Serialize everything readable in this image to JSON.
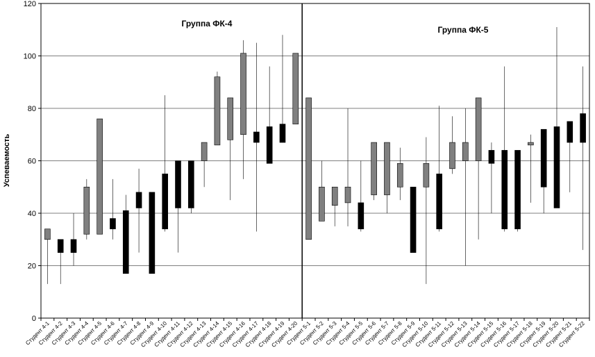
{
  "chart_data": {
    "type": "candlestick",
    "ylabel": "Успеваемость",
    "ylim": [
      0,
      120
    ],
    "yticks": [
      0,
      20,
      40,
      60,
      80,
      100,
      120
    ],
    "grid": true,
    "group_labels": [
      "Группа ФК-4",
      "Группа  ФК-5"
    ],
    "colors": {
      "up": "#808080",
      "down": "#000000",
      "grid": "#000000"
    },
    "categories": [
      "Студент 4-1",
      "Студент 4-2",
      "Студент 4-3",
      "Студент 4-4",
      "Студент 4-5",
      "Студент 4-6",
      "Студент 4-7",
      "Студент 4-8",
      "Студент 4-9",
      "Студент 4-10",
      "Студент 4-11",
      "Студент 4-12",
      "Студент 4-13",
      "Студент 4-14",
      "Студент 4-15",
      "Студент 4-16",
      "Студент 4-17",
      "Студент 4-18",
      "Студент 4-19",
      "Студент 4-20",
      "Студент 5-1",
      "Студент 5-2",
      "Студент 5-3",
      "Студент 5-4",
      "Студент 5-5",
      "Студент 5-6",
      "Студент 5-7",
      "Студент 5-8",
      "Студент 5-9",
      "Студент 5-10",
      "Студент 5-11",
      "Студент 5-12",
      "Студент 5-13",
      "Студент 5-14",
      "Студент 5-15",
      "Студент 5-16",
      "Студент 5-17",
      "Студент 5-18",
      "Студент 5-19",
      "Студент 5-20",
      "Студент 5-21",
      "Студент 5-22"
    ],
    "low": [
      13,
      13,
      20,
      30,
      32,
      30,
      17,
      25,
      17,
      33,
      25,
      40,
      50,
      66,
      45,
      53,
      33,
      59,
      67,
      74,
      30,
      37,
      35,
      35,
      33,
      45,
      40,
      45,
      25,
      13,
      33,
      55,
      20,
      30,
      40,
      33,
      33,
      44,
      40,
      42,
      48,
      26
    ],
    "high": [
      34,
      30,
      40,
      53,
      76,
      53,
      47,
      57,
      48,
      85,
      60,
      60,
      67,
      94,
      84,
      106,
      105,
      96,
      108,
      101,
      84,
      60,
      50,
      80,
      60,
      67,
      67,
      65,
      50,
      69,
      81,
      77,
      80,
      84,
      67,
      96,
      64,
      70,
      72,
      111,
      75,
      96
    ],
    "box_bottom": [
      30,
      25,
      25,
      32,
      32,
      34,
      17,
      42,
      17,
      34,
      42,
      42,
      60,
      66,
      68,
      70,
      67,
      59,
      67,
      74,
      30,
      37,
      43,
      44,
      34,
      47,
      47,
      50,
      25,
      50,
      34,
      57,
      60,
      60,
      59,
      34,
      34,
      66,
      50,
      42,
      67,
      67
    ],
    "box_top": [
      34,
      30,
      30,
      50,
      76,
      38,
      41,
      48,
      48,
      55,
      60,
      60,
      67,
      92,
      84,
      101,
      71,
      73,
      74,
      101,
      84,
      50,
      50,
      50,
      44,
      67,
      67,
      59,
      50,
      59,
      55,
      67,
      67,
      84,
      64,
      64,
      64,
      67,
      72,
      73,
      75,
      78
    ],
    "rising": [
      true,
      false,
      false,
      true,
      true,
      false,
      false,
      false,
      false,
      false,
      false,
      false,
      true,
      true,
      true,
      true,
      false,
      false,
      false,
      true,
      true,
      true,
      true,
      true,
      false,
      true,
      true,
      true,
      false,
      true,
      false,
      true,
      true,
      true,
      false,
      false,
      false,
      true,
      false,
      false,
      false,
      false
    ]
  }
}
